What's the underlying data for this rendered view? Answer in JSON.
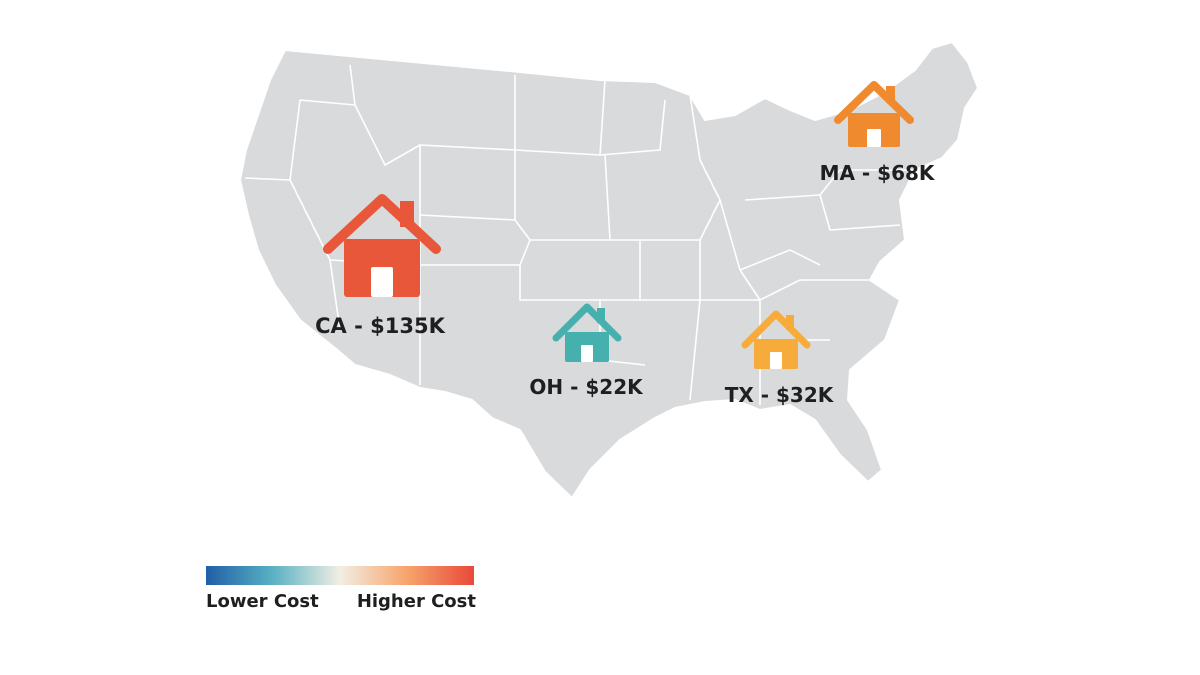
{
  "map": {
    "region": "United States",
    "markers": [
      {
        "id": "ca",
        "label": "CA - $135K",
        "icon": "house-icon",
        "color": "#e8573a",
        "size": "large"
      },
      {
        "id": "oh",
        "label": "OH - $22K",
        "icon": "house-icon",
        "color": "#45b0ad",
        "size": "small"
      },
      {
        "id": "tx",
        "label": "TX - $32K",
        "icon": "house-icon",
        "color": "#f6ab3a",
        "size": "small"
      },
      {
        "id": "ma",
        "label": "MA - $68K",
        "icon": "house-icon",
        "color": "#f08a2e",
        "size": "medium"
      }
    ]
  },
  "legend": {
    "low_label": "Lower Cost",
    "high_label": "Higher Cost",
    "gradient_colors": [
      "#1f5fa8",
      "#5ab2c3",
      "#f1eee4",
      "#f7a46b",
      "#e8493a"
    ]
  },
  "colors": {
    "land": "#d9dadc",
    "borders": "#ffffff"
  }
}
